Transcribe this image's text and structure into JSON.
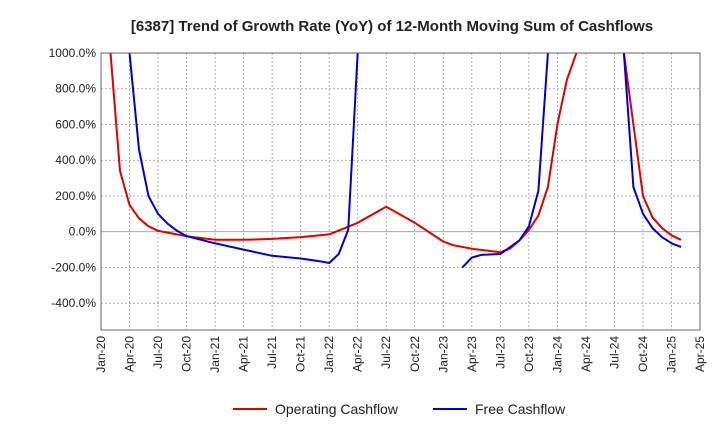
{
  "chart_data": {
    "type": "line",
    "title": "[6387]  Trend of Growth Rate (YoY) of 12-Month Moving Sum of Cashflows",
    "xlabel": "",
    "ylabel": "",
    "ylim": [
      -550,
      1000
    ],
    "xlim": [
      "2020-01",
      "2025-04"
    ],
    "y_ticks": [
      {
        "value": 1000,
        "label": "1000.0%"
      },
      {
        "value": 800,
        "label": "800.0%"
      },
      {
        "value": 600,
        "label": "600.0%"
      },
      {
        "value": 400,
        "label": "400.0%"
      },
      {
        "value": 200,
        "label": "200.0%"
      },
      {
        "value": 0,
        "label": "0.0%"
      },
      {
        "value": -200,
        "label": "-200.0%"
      },
      {
        "value": -400,
        "label": "-400.0%"
      }
    ],
    "x_ticks": [
      "Jan-20",
      "Apr-20",
      "Jul-20",
      "Oct-20",
      "Jan-21",
      "Apr-21",
      "Jul-21",
      "Oct-21",
      "Jan-22",
      "Apr-22",
      "Jul-22",
      "Oct-22",
      "Jan-23",
      "Apr-23",
      "Jul-23",
      "Oct-23",
      "Jan-24",
      "Apr-24",
      "Jul-24",
      "Oct-24",
      "Jan-25",
      "Apr-25"
    ],
    "grid": true,
    "legend_position": "bottom",
    "series": [
      {
        "name": "Operating Cashflow",
        "color": "#dd0000",
        "points": [
          [
            "2020-02",
            1000
          ],
          [
            "2020-03",
            340
          ],
          [
            "2020-04",
            150
          ],
          [
            "2020-05",
            75
          ],
          [
            "2020-06",
            30
          ],
          [
            "2020-07",
            5
          ],
          [
            "2020-08",
            -5
          ],
          [
            "2020-10",
            -25
          ],
          [
            "2021-01",
            -45
          ],
          [
            "2021-04",
            -45
          ],
          [
            "2021-07",
            -40
          ],
          [
            "2021-10",
            -30
          ],
          [
            "2022-01",
            -15
          ],
          [
            "2022-04",
            50
          ],
          [
            "2022-07",
            140
          ],
          [
            "2022-10",
            50
          ],
          [
            "2023-01",
            -55
          ],
          [
            "2023-02",
            -75
          ],
          [
            "2023-04",
            -95
          ],
          [
            "2023-07",
            -115
          ],
          [
            "2023-08",
            -95
          ],
          [
            "2023-09",
            -50
          ],
          [
            "2023-10",
            10
          ],
          [
            "2023-11",
            90
          ],
          [
            "2023-12",
            250
          ],
          [
            "2024-01",
            600
          ],
          [
            "2024-02",
            850
          ],
          [
            "2024-03",
            1000
          ]
        ],
        "segments_2": [
          [
            "2024-08",
            1000
          ],
          [
            "2024-09",
            600
          ],
          [
            "2024-10",
            200
          ],
          [
            "2024-11",
            80
          ],
          [
            "2024-12",
            20
          ],
          [
            "2025-01",
            -20
          ],
          [
            "2025-02",
            -45
          ]
        ]
      },
      {
        "name": "Free Cashflow",
        "color": "#0000cc",
        "points": [
          [
            "2020-04",
            1000
          ],
          [
            "2020-05",
            460
          ],
          [
            "2020-06",
            200
          ],
          [
            "2020-07",
            100
          ],
          [
            "2020-08",
            45
          ],
          [
            "2020-09",
            5
          ],
          [
            "2020-10",
            -25
          ],
          [
            "2021-01",
            -65
          ],
          [
            "2021-04",
            -100
          ],
          [
            "2021-07",
            -135
          ],
          [
            "2021-10",
            -150
          ],
          [
            "2021-12",
            -165
          ],
          [
            "2022-01",
            -175
          ],
          [
            "2022-02",
            -125
          ],
          [
            "2022-03",
            10
          ],
          [
            "2022-04",
            1000
          ]
        ],
        "segments_2": [
          [
            "2023-03",
            -200
          ],
          [
            "2023-04",
            -145
          ],
          [
            "2023-05",
            -130
          ],
          [
            "2023-07",
            -125
          ],
          [
            "2023-09",
            -50
          ],
          [
            "2023-10",
            30
          ],
          [
            "2023-11",
            230
          ],
          [
            "2023-12",
            1000
          ]
        ],
        "segments_3": [
          [
            "2024-08",
            1000
          ],
          [
            "2024-09",
            250
          ],
          [
            "2024-10",
            100
          ],
          [
            "2024-11",
            20
          ],
          [
            "2024-12",
            -30
          ],
          [
            "2025-01",
            -65
          ],
          [
            "2025-02",
            -85
          ]
        ]
      }
    ]
  }
}
